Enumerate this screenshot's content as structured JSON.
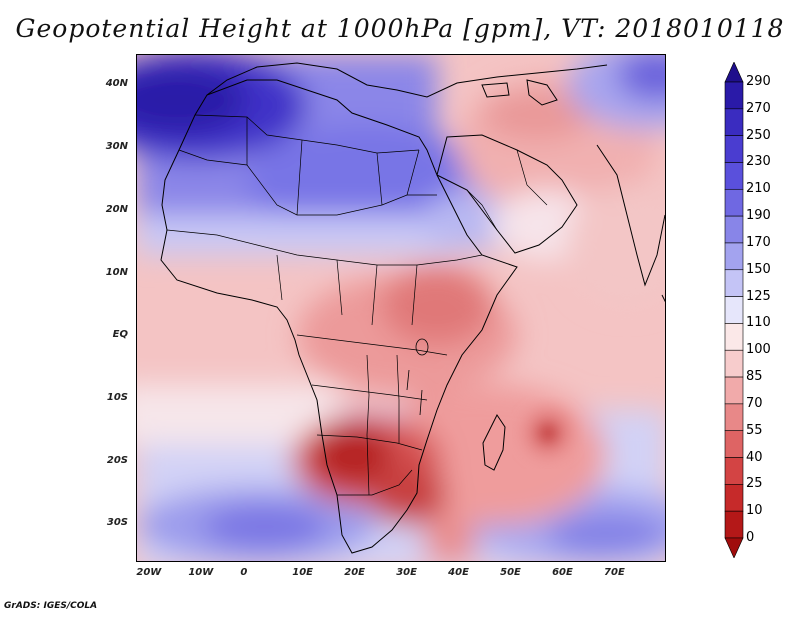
{
  "title": "Geopotential Height at 1000hPa [gpm], VT: 2018010118",
  "credit": "GrADS: IGES/COLA",
  "map": {
    "lat_labels": [
      "40N",
      "30N",
      "20N",
      "10N",
      "EQ",
      "10S",
      "20S",
      "30S"
    ],
    "lon_labels": [
      "20W",
      "10W",
      "0",
      "10E",
      "20E",
      "30E",
      "40E",
      "50E",
      "60E",
      "70E"
    ],
    "extent": {
      "lon_min": -22,
      "lon_max": 80,
      "lat_min": -36,
      "lat_max": 45
    }
  },
  "colorbar": {
    "levels": [
      "290",
      "270",
      "250",
      "230",
      "210",
      "190",
      "170",
      "150",
      "125",
      "110",
      "100",
      "85",
      "70",
      "55",
      "40",
      "25",
      "10",
      "0"
    ],
    "colors": [
      "#1f0f8c",
      "#2a1aa8",
      "#3a2cc0",
      "#4a3dd0",
      "#5a50dc",
      "#6f68e2",
      "#8885e8",
      "#a3a3ef",
      "#c4c4f6",
      "#e6e6fb",
      "#fbe8e8",
      "#f7cccc",
      "#f1aaaa",
      "#e88888",
      "#de6464",
      "#d34444",
      "#c62a2a",
      "#b41818",
      "#a00c0c"
    ]
  }
}
